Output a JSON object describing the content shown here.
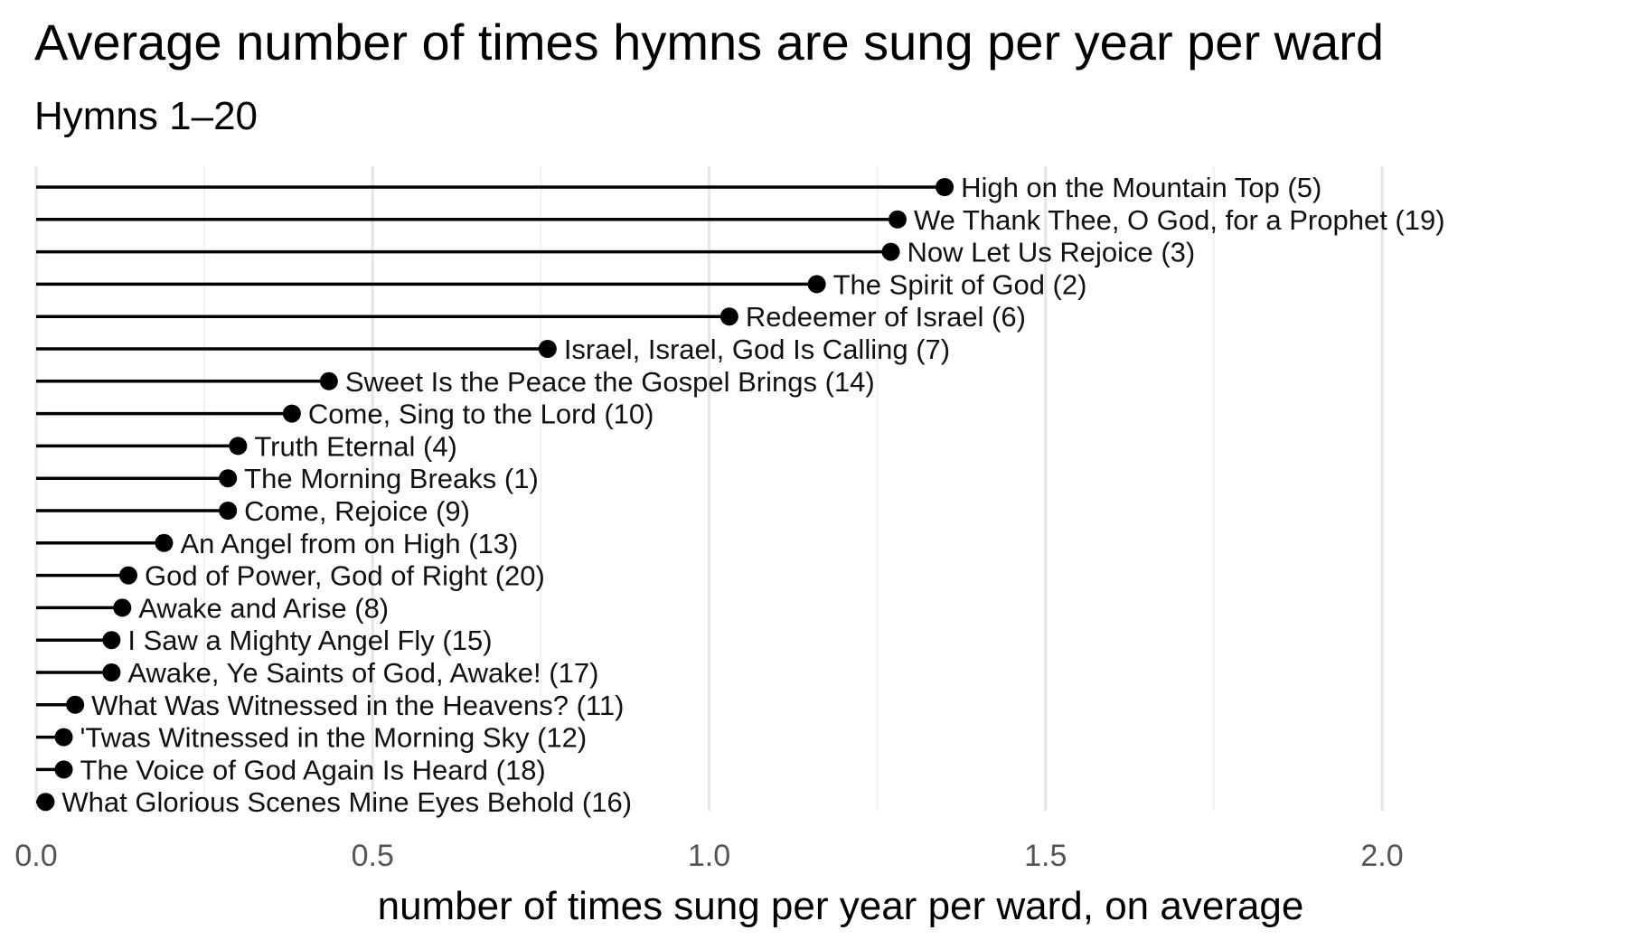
{
  "chart_data": {
    "type": "lollipop",
    "title": "Average number of times hymns are sung per year per ward",
    "subtitle": "Hymns 1–20",
    "xlabel": "number of times sung per year per ward, on average",
    "ylabel": "",
    "xlim": [
      0,
      2.25
    ],
    "x_ticks": [
      0.0,
      0.5,
      1.0,
      1.5,
      2.0
    ],
    "x_tick_labels": [
      "0.0",
      "0.5",
      "1.0",
      "1.5",
      "2.0"
    ],
    "grid": true,
    "legend": "none",
    "point_color": "#000000",
    "points": [
      {
        "label": "High on the Mountain Top (5)",
        "value": 1.35
      },
      {
        "label": "We Thank Thee, O God, for a Prophet (19)",
        "value": 1.28
      },
      {
        "label": "Now Let Us Rejoice (3)",
        "value": 1.27
      },
      {
        "label": "The Spirit of God (2)",
        "value": 1.16
      },
      {
        "label": "Redeemer of Israel (6)",
        "value": 1.03
      },
      {
        "label": "Israel, Israel, God Is Calling (7)",
        "value": 0.76
      },
      {
        "label": "Sweet Is the Peace the Gospel Brings (14)",
        "value": 0.435
      },
      {
        "label": "Come, Sing to the Lord (10)",
        "value": 0.38
      },
      {
        "label": "Truth Eternal (4)",
        "value": 0.3
      },
      {
        "label": "The Morning Breaks (1)",
        "value": 0.285
      },
      {
        "label": "Come, Rejoice (9)",
        "value": 0.285
      },
      {
        "label": "An Angel from on High (13)",
        "value": 0.19
      },
      {
        "label": "God of Power, God of Right (20)",
        "value": 0.137
      },
      {
        "label": "Awake and Arise (8)",
        "value": 0.128
      },
      {
        "label": "I Saw a Mighty Angel Fly (15)",
        "value": 0.112
      },
      {
        "label": "Awake, Ye Saints of God, Awake! (17)",
        "value": 0.112
      },
      {
        "label": "What Was Witnessed in the Heavens? (11)",
        "value": 0.058
      },
      {
        "label": "'Twas Witnessed in the Morning Sky (12)",
        "value": 0.041
      },
      {
        "label": "The Voice of God Again Is Heard (18)",
        "value": 0.041
      },
      {
        "label": "What Glorious Scenes Mine Eyes Behold (16)",
        "value": 0.014
      }
    ]
  }
}
